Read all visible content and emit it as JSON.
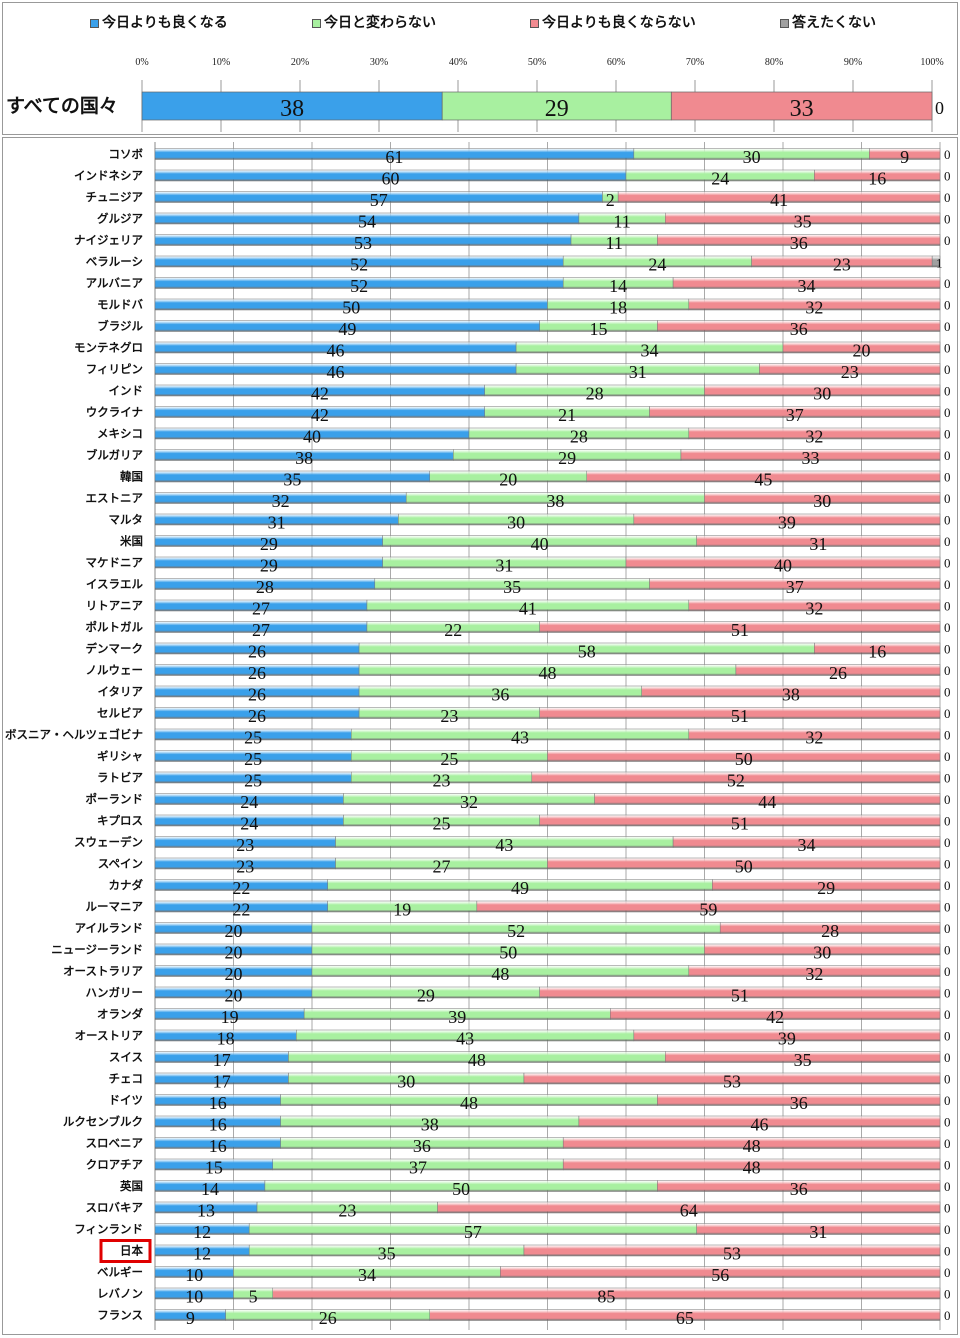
{
  "chart_data": {
    "type": "bar",
    "orientation": "horizontal",
    "stacked": true,
    "percent": true,
    "legend": {
      "placement": "top",
      "entries": [
        "今日よりも良くなる",
        "今日と変わらない",
        "今日よりも良くならない",
        "答えたくない"
      ]
    },
    "colors": [
      "#3aa0ea",
      "#a8f0a0",
      "#f08a90",
      "#a0a0a0"
    ],
    "xticks": [
      "0%",
      "10%",
      "20%",
      "30%",
      "40%",
      "50%",
      "60%",
      "70%",
      "80%",
      "90%",
      "100%"
    ],
    "xlim": [
      0,
      100
    ],
    "grid": true,
    "summary": {
      "category": "すべての国々",
      "values": [
        38,
        29,
        33,
        0
      ]
    },
    "highlight": "日本",
    "highlight_color": "#e00000",
    "categories": [
      "コソボ",
      "インドネシア",
      "チュニジア",
      "グルジア",
      "ナイジェリア",
      "ベラルーシ",
      "アルバニア",
      "モルドバ",
      "ブラジル",
      "モンテネグロ",
      "フィリピン",
      "インド",
      "ウクライナ",
      "メキシコ",
      "ブルガリア",
      "韓国",
      "エストニア",
      "マルタ",
      "米国",
      "マケドニア",
      "イスラエル",
      "リトアニア",
      "ポルトガル",
      "デンマーク",
      "ノルウェー",
      "イタリア",
      "セルビア",
      "ボスニア・ヘルツェゴビナ",
      "ギリシャ",
      "ラトビア",
      "ポーランド",
      "キプロス",
      "スウェーデン",
      "スペイン",
      "カナダ",
      "ルーマニア",
      "アイルランド",
      "ニュージーランド",
      "オーストラリア",
      "ハンガリー",
      "オランダ",
      "オーストリア",
      "スイス",
      "チェコ",
      "ドイツ",
      "ルクセンブルク",
      "スロベニア",
      "クロアチア",
      "英国",
      "スロバキア",
      "フィンランド",
      "日本",
      "ベルギー",
      "レバノン",
      "フランス"
    ],
    "series": [
      {
        "name": "今日よりも良くなる",
        "values": [
          61,
          60,
          57,
          54,
          53,
          52,
          52,
          50,
          49,
          46,
          46,
          42,
          42,
          40,
          38,
          35,
          32,
          31,
          29,
          29,
          28,
          27,
          27,
          26,
          26,
          26,
          26,
          25,
          25,
          25,
          24,
          24,
          23,
          23,
          22,
          22,
          20,
          20,
          20,
          20,
          19,
          18,
          17,
          17,
          16,
          16,
          16,
          15,
          14,
          13,
          12,
          12,
          10,
          10,
          9
        ]
      },
      {
        "name": "今日と変わらない",
        "values": [
          30,
          24,
          2,
          11,
          11,
          24,
          14,
          18,
          15,
          34,
          31,
          28,
          21,
          28,
          29,
          20,
          38,
          30,
          40,
          31,
          35,
          41,
          22,
          58,
          48,
          36,
          23,
          43,
          25,
          23,
          32,
          25,
          43,
          27,
          49,
          19,
          52,
          50,
          48,
          29,
          39,
          43,
          48,
          30,
          48,
          38,
          36,
          37,
          50,
          23,
          57,
          35,
          34,
          5,
          26
        ]
      },
      {
        "name": "今日よりも良くならない",
        "values": [
          9,
          16,
          41,
          35,
          36,
          23,
          34,
          32,
          36,
          20,
          23,
          30,
          37,
          32,
          33,
          45,
          30,
          39,
          31,
          40,
          37,
          32,
          51,
          16,
          26,
          38,
          51,
          32,
          50,
          52,
          44,
          51,
          34,
          50,
          29,
          59,
          28,
          30,
          32,
          51,
          42,
          39,
          35,
          53,
          36,
          46,
          48,
          48,
          36,
          64,
          31,
          53,
          56,
          85,
          65
        ]
      },
      {
        "name": "答えたくない",
        "values": [
          0,
          0,
          0,
          0,
          0,
          1,
          0,
          0,
          0,
          0,
          0,
          0,
          0,
          0,
          0,
          0,
          0,
          0,
          0,
          0,
          0,
          0,
          0,
          0,
          0,
          0,
          0,
          0,
          0,
          0,
          0,
          0,
          0,
          0,
          0,
          0,
          0,
          0,
          0,
          0,
          0,
          0,
          0,
          0,
          0,
          0,
          0,
          0,
          0,
          0,
          0,
          0,
          0,
          0,
          0
        ]
      }
    ]
  }
}
